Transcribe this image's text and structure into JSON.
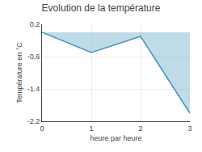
{
  "chart_data": {
    "type": "area",
    "title": "Evolution de la température",
    "xlabel": "heure par heure",
    "ylabel": "Température en °C",
    "x": [
      0,
      1,
      2,
      3
    ],
    "values": [
      0.0,
      -0.5,
      -0.1,
      -2.0
    ],
    "color": "#4499bb",
    "xlim": [
      0,
      3
    ],
    "ylim": [
      -2.2,
      0.2
    ],
    "xticks": [
      0,
      1,
      2,
      3
    ],
    "yticks": [
      0.2,
      -0.6,
      -1.4,
      -2.2
    ],
    "grid": true
  }
}
